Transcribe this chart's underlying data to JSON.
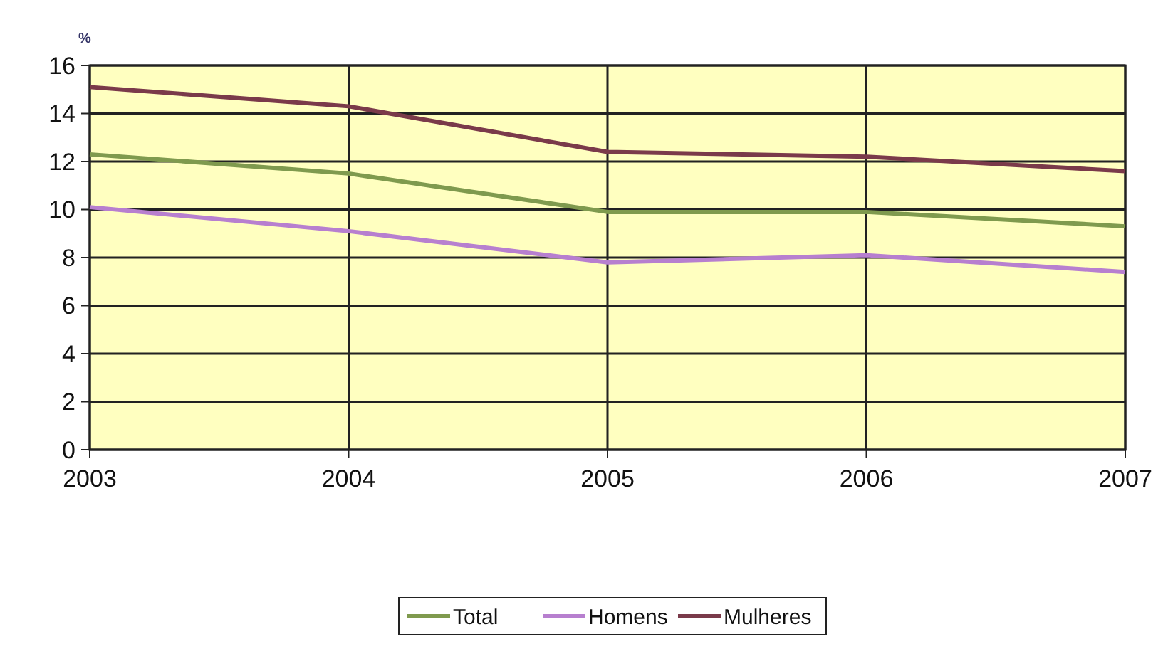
{
  "chart_data": {
    "type": "line",
    "ylabel": "%",
    "x": [
      2003,
      2004,
      2005,
      2006,
      2007
    ],
    "xlim": [
      2003,
      2007
    ],
    "xticks": [
      2003,
      2004,
      2005,
      2006,
      2007
    ],
    "ylim": [
      0,
      16
    ],
    "yticks": [
      0,
      2,
      4,
      6,
      8,
      10,
      12,
      14,
      16
    ],
    "grid": true,
    "legend": "bottom",
    "marker": "none",
    "series": [
      {
        "name": "Total",
        "color": "#7f9a4e",
        "values": [
          12.3,
          11.5,
          9.9,
          9.9,
          9.3
        ]
      },
      {
        "name": "Homens",
        "color": "#b77fcf",
        "values": [
          10.1,
          9.1,
          7.8,
          8.1,
          7.4
        ]
      },
      {
        "name": "Mulheres",
        "color": "#7a3a4a",
        "values": [
          15.1,
          14.3,
          12.4,
          12.2,
          11.6
        ]
      }
    ]
  }
}
